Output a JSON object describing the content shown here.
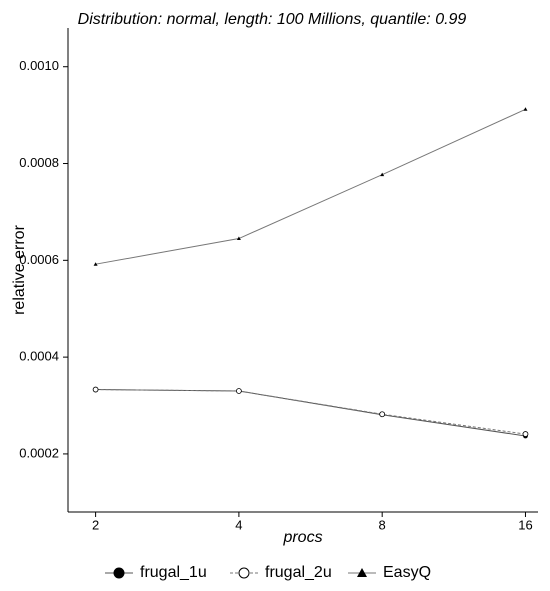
{
  "chart_data": {
    "type": "line",
    "title": "Distribution: normal, length: 100 Millions, quantile: 0.99",
    "x_label": "procs",
    "y_label": "relative error",
    "x": [
      2,
      4,
      8,
      16
    ],
    "x_log_scale": true,
    "xlim": [
      1.75,
      17
    ],
    "xticks": [
      2,
      4,
      8,
      16
    ],
    "ylim": [
      8e-05,
      0.00108
    ],
    "yticks": [
      0.0002,
      0.0004,
      0.0006,
      0.0008,
      {
        "value": 0.001,
        "label": "0.0010"
      }
    ],
    "grid": false,
    "legend": "bottom",
    "series": [
      {
        "name": "frugal_1u",
        "color": "#555555",
        "marker": "filled-circle",
        "dashed": false,
        "values": [
          0.000333,
          0.00033,
          0.000281,
          0.000237
        ]
      },
      {
        "name": "frugal_2u",
        "color": "#777777",
        "marker": "open-circle",
        "dashed": true,
        "values": [
          0.000333,
          0.00033,
          0.000282,
          0.000241
        ]
      },
      {
        "name": "EasyQ",
        "color": "#777777",
        "marker": "triangle",
        "dashed": false,
        "values": [
          0.000592,
          0.000645,
          0.000777,
          0.000912
        ]
      }
    ]
  }
}
